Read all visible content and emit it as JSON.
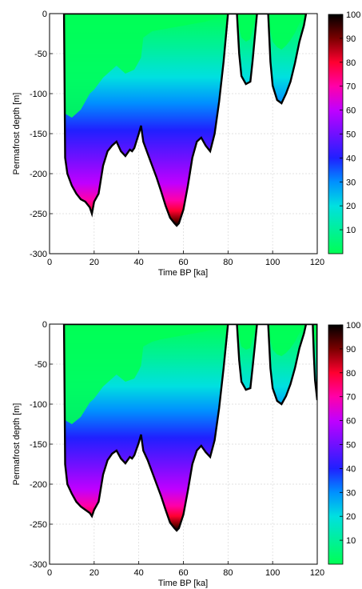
{
  "chart_data": [
    {
      "type": "heatmap",
      "title": "",
      "xlabel": "Time BP [ka]",
      "ylabel": "Permafrost depth [m]",
      "xlim": [
        0,
        120
      ],
      "ylim": [
        -300,
        0
      ],
      "xticks": [
        0,
        20,
        40,
        60,
        80,
        100,
        120
      ],
      "yticks": [
        0,
        -50,
        -100,
        -150,
        -200,
        -250,
        -300
      ],
      "grid": true,
      "colorbar": {
        "range": [
          0,
          100
        ],
        "ticks": [
          10,
          20,
          30,
          40,
          50,
          60,
          70,
          80,
          90,
          100
        ]
      },
      "boundary": {
        "x": [
          6.5,
          7,
          8,
          10,
          12,
          14,
          16,
          18,
          19,
          20,
          22,
          24,
          26,
          28,
          30,
          32,
          34,
          36,
          37,
          38,
          40,
          41,
          42,
          44,
          46,
          48,
          50,
          52,
          54,
          56,
          57,
          58,
          60,
          62,
          64,
          66,
          68,
          70,
          72,
          74,
          76,
          78,
          80,
          84,
          85,
          86,
          88,
          90,
          91,
          92,
          93,
          98,
          99,
          100,
          102,
          104,
          106,
          108,
          110,
          112,
          114,
          115
        ],
        "depth": [
          0,
          -180,
          -200,
          -215,
          -225,
          -232,
          -235,
          -242,
          -250,
          -235,
          -225,
          -190,
          -172,
          -165,
          -160,
          -172,
          -178,
          -170,
          -172,
          -168,
          -150,
          -140,
          -160,
          -175,
          -190,
          -205,
          -222,
          -240,
          -255,
          -262,
          -265,
          -262,
          -245,
          -215,
          -180,
          -160,
          -155,
          -165,
          -172,
          -150,
          -110,
          -60,
          0,
          0,
          -50,
          -78,
          -88,
          -85,
          -60,
          -30,
          0,
          0,
          -60,
          -90,
          -108,
          -112,
          -100,
          -85,
          -62,
          -35,
          -15,
          0
        ]
      },
      "green_front": {
        "x": [
          6.5,
          7,
          10,
          14,
          18,
          20,
          24,
          28,
          30,
          34,
          38,
          40,
          41,
          42,
          46,
          50,
          54,
          58,
          62,
          66,
          70,
          74,
          76,
          78,
          80,
          84,
          85,
          86,
          88,
          90,
          91,
          92,
          93,
          98,
          99,
          100,
          102,
          104,
          106,
          108,
          110,
          112,
          114,
          115
        ],
        "depth": [
          0,
          -125,
          -130,
          -120,
          -100,
          -95,
          -80,
          -70,
          -65,
          -75,
          -70,
          -60,
          -55,
          -30,
          -22,
          -20,
          -18,
          -16,
          -14,
          -12,
          -10,
          -6,
          -3,
          -1,
          0,
          0,
          -18,
          -30,
          -35,
          -32,
          -20,
          -8,
          0,
          0,
          -22,
          -35,
          -42,
          -45,
          -40,
          -33,
          -24,
          -12,
          -4,
          0
        ]
      }
    },
    {
      "type": "heatmap",
      "title": "",
      "xlabel": "Time BP [ka]",
      "ylabel": "Permafrost depth [m]",
      "xlim": [
        0,
        120
      ],
      "ylim": [
        -300,
        0
      ],
      "xticks": [
        0,
        20,
        40,
        60,
        80,
        100,
        120
      ],
      "yticks": [
        0,
        -50,
        -100,
        -150,
        -200,
        -250,
        -300
      ],
      "grid": true,
      "colorbar": {
        "range": [
          0,
          100
        ],
        "ticks": [
          10,
          20,
          30,
          40,
          50,
          60,
          70,
          80,
          90,
          100
        ]
      },
      "boundary": {
        "x": [
          6.5,
          7,
          8,
          10,
          12,
          14,
          16,
          18,
          19,
          20,
          22,
          24,
          26,
          28,
          30,
          32,
          34,
          36,
          37,
          38,
          40,
          41,
          42,
          44,
          46,
          48,
          50,
          52,
          54,
          56,
          57,
          58,
          60,
          62,
          64,
          66,
          68,
          70,
          72,
          74,
          76,
          78,
          80,
          84,
          85,
          86,
          88,
          90,
          91,
          92,
          93,
          98,
          99,
          100,
          102,
          104,
          106,
          108,
          110,
          112,
          114,
          115,
          118,
          118.5,
          119,
          120,
          120
        ],
        "depth": [
          0,
          -175,
          -200,
          -212,
          -222,
          -228,
          -232,
          -236,
          -240,
          -232,
          -222,
          -188,
          -170,
          -162,
          -158,
          -168,
          -174,
          -166,
          -168,
          -164,
          -148,
          -138,
          -158,
          -170,
          -185,
          -200,
          -215,
          -232,
          -248,
          -255,
          -258,
          -255,
          -238,
          -208,
          -175,
          -158,
          -152,
          -160,
          -166,
          -145,
          -105,
          -55,
          0,
          0,
          -45,
          -72,
          -82,
          -80,
          -55,
          -28,
          0,
          0,
          -55,
          -80,
          -96,
          -100,
          -90,
          -75,
          -55,
          -30,
          -12,
          0,
          0,
          -40,
          -70,
          -95,
          0
        ]
      },
      "green_front": {
        "x": [
          6.5,
          7,
          10,
          14,
          18,
          20,
          24,
          28,
          30,
          34,
          38,
          40,
          41,
          42,
          46,
          50,
          54,
          58,
          62,
          66,
          70,
          74,
          76,
          78,
          80,
          84,
          85,
          86,
          88,
          90,
          91,
          92,
          93,
          98,
          99,
          100,
          102,
          104,
          106,
          108,
          110,
          112,
          114,
          115,
          118,
          118.5,
          119,
          120,
          120
        ],
        "depth": [
          0,
          -120,
          -125,
          -116,
          -98,
          -93,
          -78,
          -68,
          -63,
          -72,
          -68,
          -58,
          -52,
          -28,
          -22,
          -19,
          -17,
          -15,
          -13,
          -11,
          -9,
          -5,
          -3,
          -1,
          0,
          0,
          -16,
          -28,
          -32,
          -30,
          -18,
          -7,
          0,
          0,
          -20,
          -32,
          -38,
          -40,
          -36,
          -30,
          -22,
          -11,
          -4,
          0,
          0,
          -12,
          -20,
          -26,
          0
        ]
      }
    }
  ]
}
